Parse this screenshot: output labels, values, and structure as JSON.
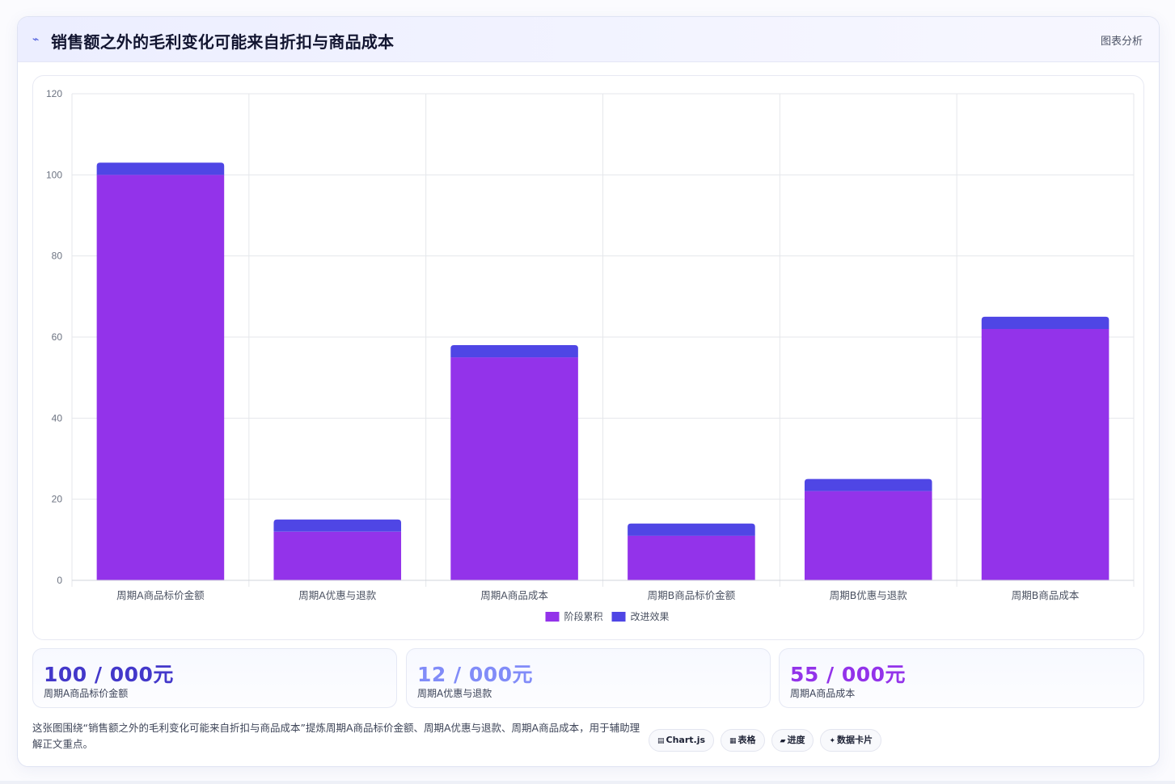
{
  "header": {
    "icon": "chart-line-icon",
    "title": "销售额之外的毛利变化可能来自折扣与商品成本",
    "tag": "图表分析"
  },
  "colors": {
    "series_base": "#9333ea",
    "series_delta": "#4f46e5",
    "stat_1": "#4338ca",
    "stat_2": "#818cf8",
    "stat_3": "#9333ea",
    "grid": "#e5e7eb",
    "tick_text": "#6b7280"
  },
  "chart_data": {
    "type": "bar",
    "stacked": true,
    "categories": [
      "周期A商品标价金额",
      "周期A优惠与退款",
      "周期A商品成本",
      "周期B商品标价金额",
      "周期B优惠与退款",
      "周期B商品成本"
    ],
    "series": [
      {
        "name": "阶段累积",
        "values": [
          100,
          12,
          55,
          11,
          22,
          62
        ]
      },
      {
        "name": "改进效果",
        "values": [
          3,
          3,
          3,
          3,
          3,
          3
        ]
      }
    ],
    "ylim": [
      0,
      120
    ],
    "yticks": [
      0,
      20,
      40,
      60,
      80,
      100,
      120
    ],
    "grid": true,
    "legend": "bottom-center"
  },
  "stats": [
    {
      "value": "100 / 000元",
      "label": "周期A商品标价金额"
    },
    {
      "value": "12 / 000元",
      "label": "周期A优惠与退款"
    },
    {
      "value": "55 / 000元",
      "label": "周期A商品成本"
    }
  ],
  "footer": {
    "description": "这张图围绕“销售额之外的毛利变化可能来自折扣与商品成本”提炼周期A商品标价金额、周期A优惠与退款、周期A商品成本，用于辅助理解正文重点。",
    "tags": [
      {
        "icon": "chart-icon",
        "glyph": "▤",
        "label": "Chart.js"
      },
      {
        "icon": "table-icon",
        "glyph": "▦",
        "label": "表格"
      },
      {
        "icon": "progress-icon",
        "glyph": "▰",
        "label": "进度"
      },
      {
        "icon": "sparkle-icon",
        "glyph": "✦",
        "label": "数据卡片"
      }
    ]
  }
}
